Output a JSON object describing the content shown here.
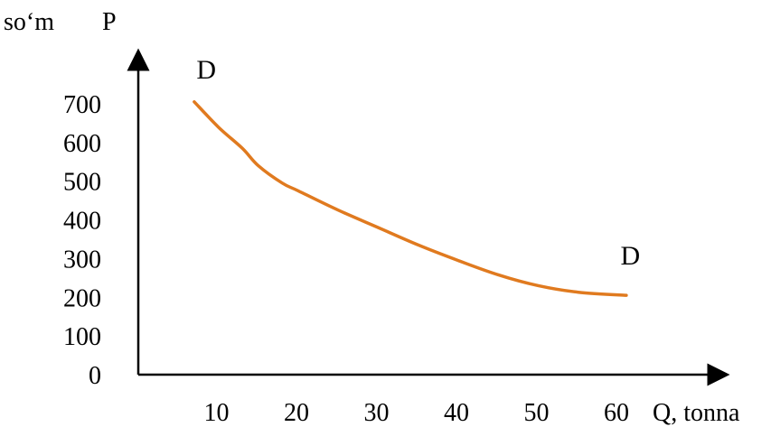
{
  "chart_data": {
    "type": "line",
    "y_unit_label": "so‘m",
    "y_axis_label": "P",
    "x_axis_label": "Q, tonna",
    "x_ticks": [
      10,
      20,
      30,
      40,
      50,
      60
    ],
    "y_ticks": [
      0,
      100,
      200,
      300,
      400,
      500,
      600,
      700
    ],
    "xlim": [
      0,
      70
    ],
    "ylim": [
      0,
      750
    ],
    "grid": false,
    "series": [
      {
        "color": "#E07A1F",
        "x": [
          7,
          10,
          13,
          15,
          18,
          20,
          25,
          30,
          35,
          40,
          45,
          50,
          55,
          61
        ],
        "y": [
          705,
          640,
          585,
          540,
          495,
          475,
          425,
          380,
          335,
          295,
          258,
          230,
          213,
          205
        ]
      }
    ],
    "annotations": [
      {
        "text": "D",
        "x": 8.5,
        "y": 765
      },
      {
        "text": "D",
        "x": 61.5,
        "y": 285
      }
    ]
  }
}
